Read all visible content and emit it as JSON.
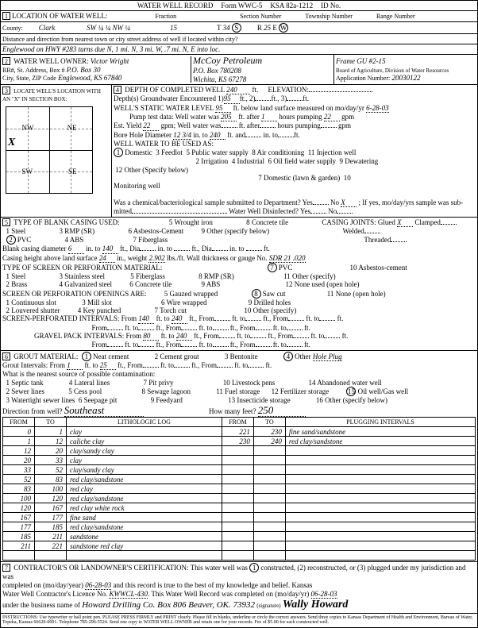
{
  "form": {
    "title": "WATER WELL RECORD",
    "form_no": "Form WWC-5",
    "ksa": "KSA 82a-1212",
    "id_label": "ID No."
  },
  "sec1": {
    "label": "LOCATION OF WATER WELL:",
    "county_label": "County:",
    "county": "Clark",
    "fraction_label": "Fraction",
    "fraction": "SW ¼ ¼ NW ¼",
    "secnum_label": "Section Number",
    "secnum": "15",
    "twp_label": "Township Number",
    "twp": "34",
    "twp_dir": "S",
    "rng_label": "Range Number",
    "rng": "25",
    "rng_dir": "W",
    "distance_label": "Distance and direction from nearest town or city street address of well if located within city?",
    "distance": "Englewood on HWY #283 turns due N, 1 mi. N, 3 mi. W, .7 mi. N, E into loc."
  },
  "sec2": {
    "label": "WATER WELL OWNER:",
    "owner": "Victor Wright",
    "addr_label": "RR#, St. Address, Box #",
    "addr": "P.O. Box 30",
    "city_label": "City, State, ZIP Code",
    "city": "Englewood, KS 67840",
    "operator": "McCoy Petroleum",
    "op_addr": "P.O. Box 780208",
    "op_city": "Wichita, KS 67278",
    "gu": "Frame GU #2-15",
    "board": "Board of Agriculture, Division of Water Resources",
    "appnum_label": "Application Number:",
    "appnum": "20030122"
  },
  "sec3": {
    "label": "LOCATE WELL'S LOCATION WITH AN \"X\" IN SECTION BOX:",
    "nw": "NW",
    "ne": "NE",
    "sw": "SW",
    "se": "SE",
    "n": "N",
    "s": "S",
    "e": "E",
    "w": "W",
    "mile": "1 Mile"
  },
  "sec4": {
    "label": "DEPTH OF COMPLETED WELL",
    "depth": "240",
    "ft": "ft.",
    "elev_label": "ELEVATION:",
    "gw_label": "Depth(s) Groundwater Encountered",
    "gw1": "95",
    "swl_label": "WELL'S STATIC WATER LEVEL",
    "swl": "95",
    "swl_txt": "ft. below land surface measured on mo/day/yr",
    "swl_date": "6-28-03",
    "pump_label": "Pump test data: Well water was",
    "pump_val": "205",
    "pump_after": "ft. after",
    "pump_hrs": "1",
    "pump_txt": "hours pumping",
    "pump_gpm": "22",
    "gpm": "gpm",
    "est_label": "Est. Yield",
    "est_val": "22",
    "est_gpm": "gpm; Well water was",
    "est_after": "ft. after",
    "est_hrs": "hours pumping",
    "bore_label": "Bore Hole Diameter",
    "bore_val": "12 3/4",
    "bore_to": "in. to",
    "bore_depth": "240",
    "bore_ft": "ft. and",
    "bore_in2": "in. to",
    "use_label": "WELL WATER TO BE USED AS:",
    "u1": "Domestic",
    "u2": "Irrigation",
    "u3": "Feedlot",
    "u4": "Industrial",
    "u5": "Public water supply",
    "u6": "Oil field water supply",
    "u7": "Domestic (lawn & garden)",
    "u8": "Air conditioning",
    "u9": "Dewatering",
    "u10": "Monitoring well",
    "u11": "Injection well",
    "u12": "Other (Specify below)",
    "chem_label": "Was a chemical/bacteriological sample submitted to Department? Yes",
    "chem_no": "No",
    "chem_x": "X",
    "chem_txt": "; If yes, mo/day/yrs sample was sub-",
    "mitted": "mitted",
    "disinf_label": "Water Well Disinfected? Yes",
    "disinf_no": "No"
  },
  "sec5": {
    "label": "TYPE OF BLANK CASING USED:",
    "c1": "Steel",
    "c2": "PVC",
    "c3": "RMP (SR)",
    "c4": "ABS",
    "c5": "Wrought iron",
    "c6": "Asbestos-Cement",
    "c7": "Fiberglass",
    "c8": "Concrete tile",
    "c9": "Other (specify below)",
    "joints_label": "CASING JOINTS: Glued",
    "joints_x": "X",
    "clamped": "Clamped",
    "welded": "Welded",
    "threaded": "Threaded",
    "dia_label": "Blank casing diameter",
    "dia": "6",
    "dia_to": "in. to",
    "dia_depth": "140",
    "dia_ft": "ft., Dia",
    "dia_in": "in. to",
    "dia_ft2": "ft., Dia",
    "dia_in2": "in. to",
    "dia_ft3": "ft.",
    "height_label": "Casing height above land surface",
    "height": "24",
    "weight_label": "in., weight",
    "weight": "2.902",
    "lbs": "lbs./ft. Wall thickness or gauge No.",
    "sdr": "SDR 21 .020",
    "screen_label": "TYPE OF SCREEN OR PERFORATION MATERIAL:",
    "s1": "Steel",
    "s2": "Brass",
    "s3": "Stainless steel",
    "s4": "Galvanized steel",
    "s5": "Fiberglass",
    "s6": "Concrete tile",
    "s7": "PVC",
    "s8": "RMP (SR)",
    "s9": "ABS",
    "s10": "Asbestos-cement",
    "s11": "Other (specify)",
    "s12": "None used (open hole)",
    "open_label": "SCREEN OR PERFORATION OPENINGS ARE:",
    "o1": "Continuous slot",
    "o2": "Louvered shutter",
    "o3": "Mill slot",
    "o4": "Key punched",
    "o5": "Gauzed wrapped",
    "o6": "Wire wrapped",
    "o7": "Torch cut",
    "o8": "Saw cut",
    "o9": "Drilled holes",
    "o10": "Other (specify)",
    "o11": "None (open hole)",
    "perf_label": "SCREEN-PERFORATED INTERVALS: From",
    "perf_from": "140",
    "perf_to_label": "ft. to",
    "perf_to": "240",
    "ft_from": "ft., From",
    "ft_to": "ft. to",
    "ft_end": "ft.",
    "from_label": "From",
    "gravel_label": "GRAVEL PACK INTERVALS: From",
    "gravel_from": "80",
    "gravel_to": "240"
  },
  "sec6": {
    "label": "GROUT MATERIAL:",
    "g1": "Neat cement",
    "g2": "Cement grout",
    "g3": "Bentonite",
    "g4": "Other",
    "g4_val": "Hole Plug",
    "grout_label": "Grout Intervals: From",
    "grout_from": "1",
    "grout_to_label": "ft. to",
    "grout_to": "25",
    "ft_from": "ft., From",
    "ft_to": "ft. to",
    "ft_end": "ft.",
    "source_label": "What is the nearest source of possible contamination:",
    "n1": "Septic tank",
    "n2": "Sewer lines",
    "n3": "Watertight sewer lines",
    "n4": "Lateral lines",
    "n5": "Cess pool",
    "n6": "Seepage pit",
    "n7": "Pit privy",
    "n8": "Sewage lagoon",
    "n9": "Feedyard",
    "n10": "Livestock pens",
    "n11": "Fuel storage",
    "n12": "Fertilizer storage",
    "n13": "Insecticide storage",
    "n14": "Abandoned water well",
    "n15": "Oil well/Gas well",
    "n16": "Other (specify below)",
    "dir_label": "Direction from well?",
    "dir": "Southeast",
    "feet_label": "How many feet?",
    "feet": "250",
    "log_from": "FROM",
    "log_to": "TO",
    "log_lith": "LITHOLOGIC LOG",
    "plug_label": "PLUGGING INTERVALS",
    "log_rows": [
      [
        "0",
        "1",
        "clay",
        "221",
        "230",
        "fine sand/sandstone"
      ],
      [
        "1",
        "12",
        "caliche clay",
        "230",
        "240",
        "red clay/sandstone"
      ],
      [
        "12",
        "20",
        "clay/sandy clay",
        "",
        "",
        ""
      ],
      [
        "20",
        "33",
        "clay",
        "",
        "",
        ""
      ],
      [
        "33",
        "52",
        "clay/sandy clay",
        "",
        "",
        ""
      ],
      [
        "52",
        "83",
        "red clay/sandstone",
        "",
        "",
        ""
      ],
      [
        "83",
        "100",
        "red clay",
        "",
        "",
        ""
      ],
      [
        "100",
        "120",
        "red clay/sandstone",
        "",
        "",
        ""
      ],
      [
        "120",
        "167",
        "red clay white rock",
        "",
        "",
        ""
      ],
      [
        "167",
        "177",
        "fine sand",
        "",
        "",
        ""
      ],
      [
        "177",
        "185",
        "red clay/sandstone",
        "",
        "",
        ""
      ],
      [
        "185",
        "211",
        "sandstone",
        "",
        "",
        ""
      ],
      [
        "211",
        "221",
        "sandstone red clay",
        "",
        "",
        ""
      ],
      [
        "",
        "",
        "",
        "",
        "",
        ""
      ]
    ]
  },
  "sec7": {
    "label": "CONTRACTOR'S OR LANDOWNER'S CERTIFICATION: This water well was",
    "c1": "constructed, (2) reconstructed, or (3) plugged under my jurisdiction and was",
    "comp_label": "completed on (mo/day/year)",
    "comp": "06-28-03",
    "rec_txt": "and this record is true to the best of my knowledge and belief. Kansas",
    "lic_label": "Water Well Contractor's Licence No.",
    "lic": "KWWCL-430",
    "rec_comp": "This Water Well Record was completed on (mo/day/yr)",
    "rec_date": "06-28-03",
    "under_label": "under the business name of",
    "business": "Howard Drilling Co. Box 806 Beaver, OK. 73932",
    "sig_label": "(signature)",
    "sig": "Wally Howard"
  },
  "instructions": "INSTRUCTIONS: Use typewriter or ball point pen. PLEASE PRESS FIRMLY and PRINT clearly. Please fill in blanks, underline or circle the correct answers. Send three copies to Kansas Department of Health and Environment, Bureau of Water, Topeka, Kansas 66620-0001. Telephone 785-296-5524. Send one copy to WATER WELL OWNER and retain one for your records. Fee of $5.00 for each constructed well."
}
